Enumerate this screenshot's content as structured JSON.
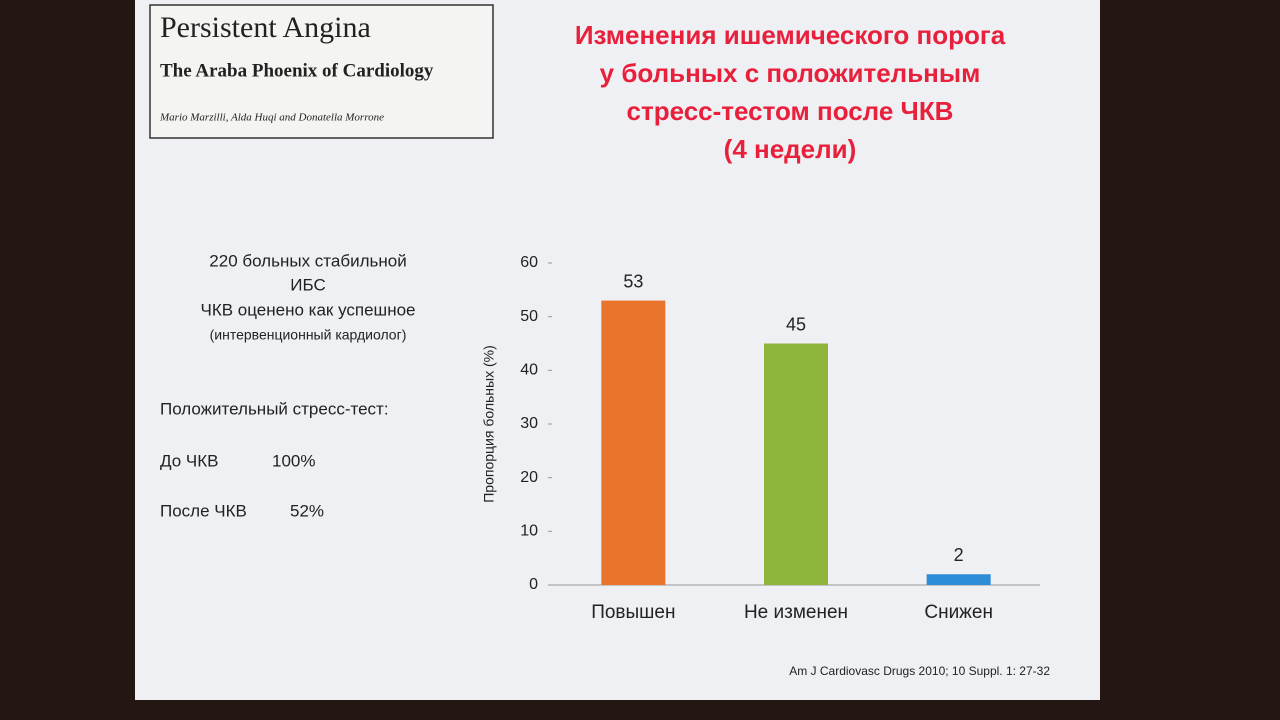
{
  "book": {
    "title": "Persistent Angina",
    "subtitle": "The Araba Phoenix of Cardiology",
    "authors": "Mario Marzilli, Alda Huqi and Donatella Morrone"
  },
  "left_text": {
    "intro": [
      "220 больных стабильной",
      "ИБС",
      "ЧКВ оценено как успешное",
      "(интервенционный  кардиолог)"
    ],
    "heading": "Положительный стресс-тест:",
    "before_label": "До ЧКВ",
    "before_value": "100%",
    "after_label": "После ЧКВ",
    "after_value": "52%"
  },
  "source": "Am J Cardiovasc Drugs 2010; 10 Suppl. 1: 27-32",
  "chart_data": {
    "type": "bar",
    "title": [
      "Изменения ишемического порога",
      "у больных с положительным",
      "стресс-тестом после ЧКВ",
      "(4 недели)"
    ],
    "y_label": "Пропорция больных (%)",
    "categories": [
      "Повышен",
      "Не изменен",
      "Снижен"
    ],
    "values": [
      53,
      45,
      2
    ],
    "colors": [
      "#e8752b",
      "#8fb43c",
      "#2e8bd6"
    ],
    "ylim": [
      0,
      60
    ],
    "yticks": [
      0,
      10,
      20,
      30,
      40,
      50,
      60
    ]
  }
}
